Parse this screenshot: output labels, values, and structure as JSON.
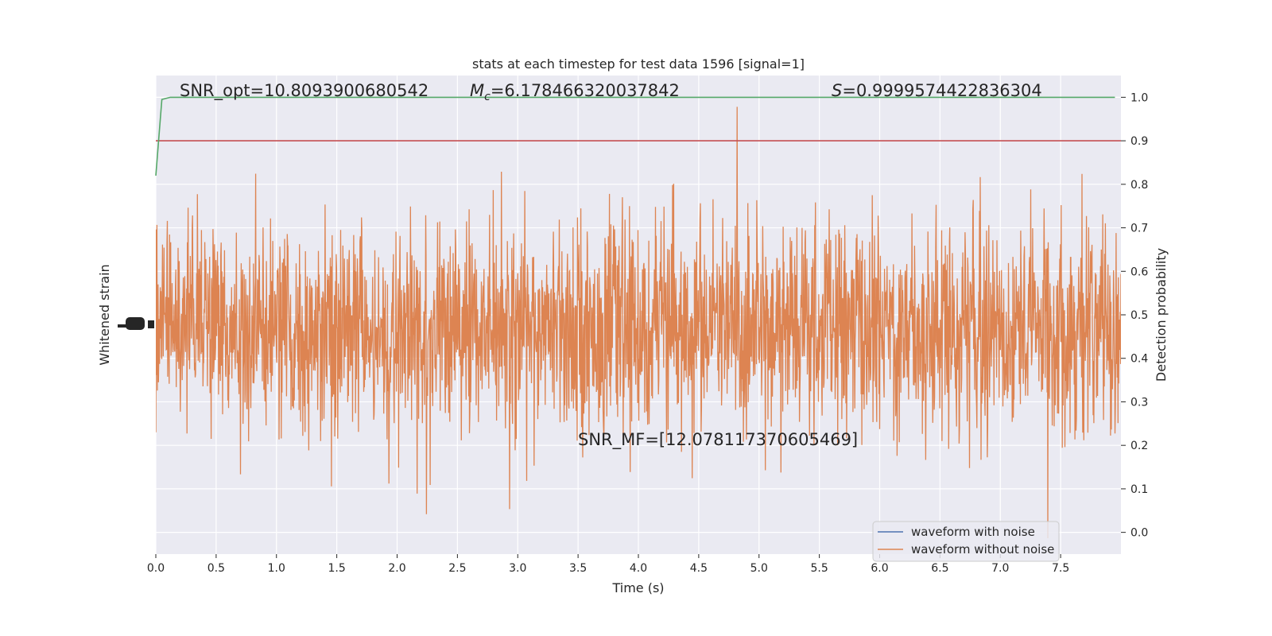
{
  "chart_data": {
    "type": "line",
    "title": "stats at each timestep for test data 1596 [signal=1]",
    "xlabel": "Time (s)",
    "ylabel_left": "Whitened strain",
    "ylabel_right": "Detection probability",
    "xlim": [
      0.0,
      8.0
    ],
    "ylim_right": [
      -0.05,
      1.05
    ],
    "x_ticks": [
      0.0,
      0.5,
      1.0,
      1.5,
      2.0,
      2.5,
      3.0,
      3.5,
      4.0,
      4.5,
      5.0,
      5.5,
      6.0,
      6.5,
      7.0,
      7.5
    ],
    "x_tick_labels": [
      "0.0",
      "0.5",
      "1.0",
      "1.5",
      "2.0",
      "2.5",
      "3.0",
      "3.5",
      "4.0",
      "4.5",
      "5.0",
      "5.5",
      "6.0",
      "6.5",
      "7.0",
      "7.5"
    ],
    "y_right_ticks": [
      0.0,
      0.1,
      0.2,
      0.3,
      0.4,
      0.5,
      0.6,
      0.7,
      0.8,
      0.9,
      1.0
    ],
    "y_right_tick_labels": [
      "0.0",
      "0.1",
      "0.2",
      "0.3",
      "0.4",
      "0.5",
      "0.6",
      "0.7",
      "0.8",
      "0.9",
      "1.0"
    ],
    "grid": true,
    "legend_position": "lower-right",
    "annotations": {
      "snr_opt": "SNR_opt=10.8093900680542",
      "mc_symbol": "M",
      "mc_subscript": "c",
      "mc_value": "=6.178466320037842",
      "s_symbol": "S",
      "s_value": "=0.9999574422836304",
      "snr_mf": "SNR_MF=[12.078117370605469]"
    },
    "series": [
      {
        "name": "waveform with noise",
        "color": "#4c72b0"
      },
      {
        "name": "waveform without noise",
        "color": "#dd8452"
      }
    ],
    "detection_probability": {
      "color": "#55a868",
      "points": [
        [
          0.0,
          0.82
        ],
        [
          0.05,
          0.995
        ],
        [
          0.12,
          1.0
        ],
        [
          7.95,
          1.0
        ]
      ]
    },
    "threshold": {
      "color": "#c44e52",
      "value": 0.9
    },
    "background_color": "#eaeaf2"
  }
}
